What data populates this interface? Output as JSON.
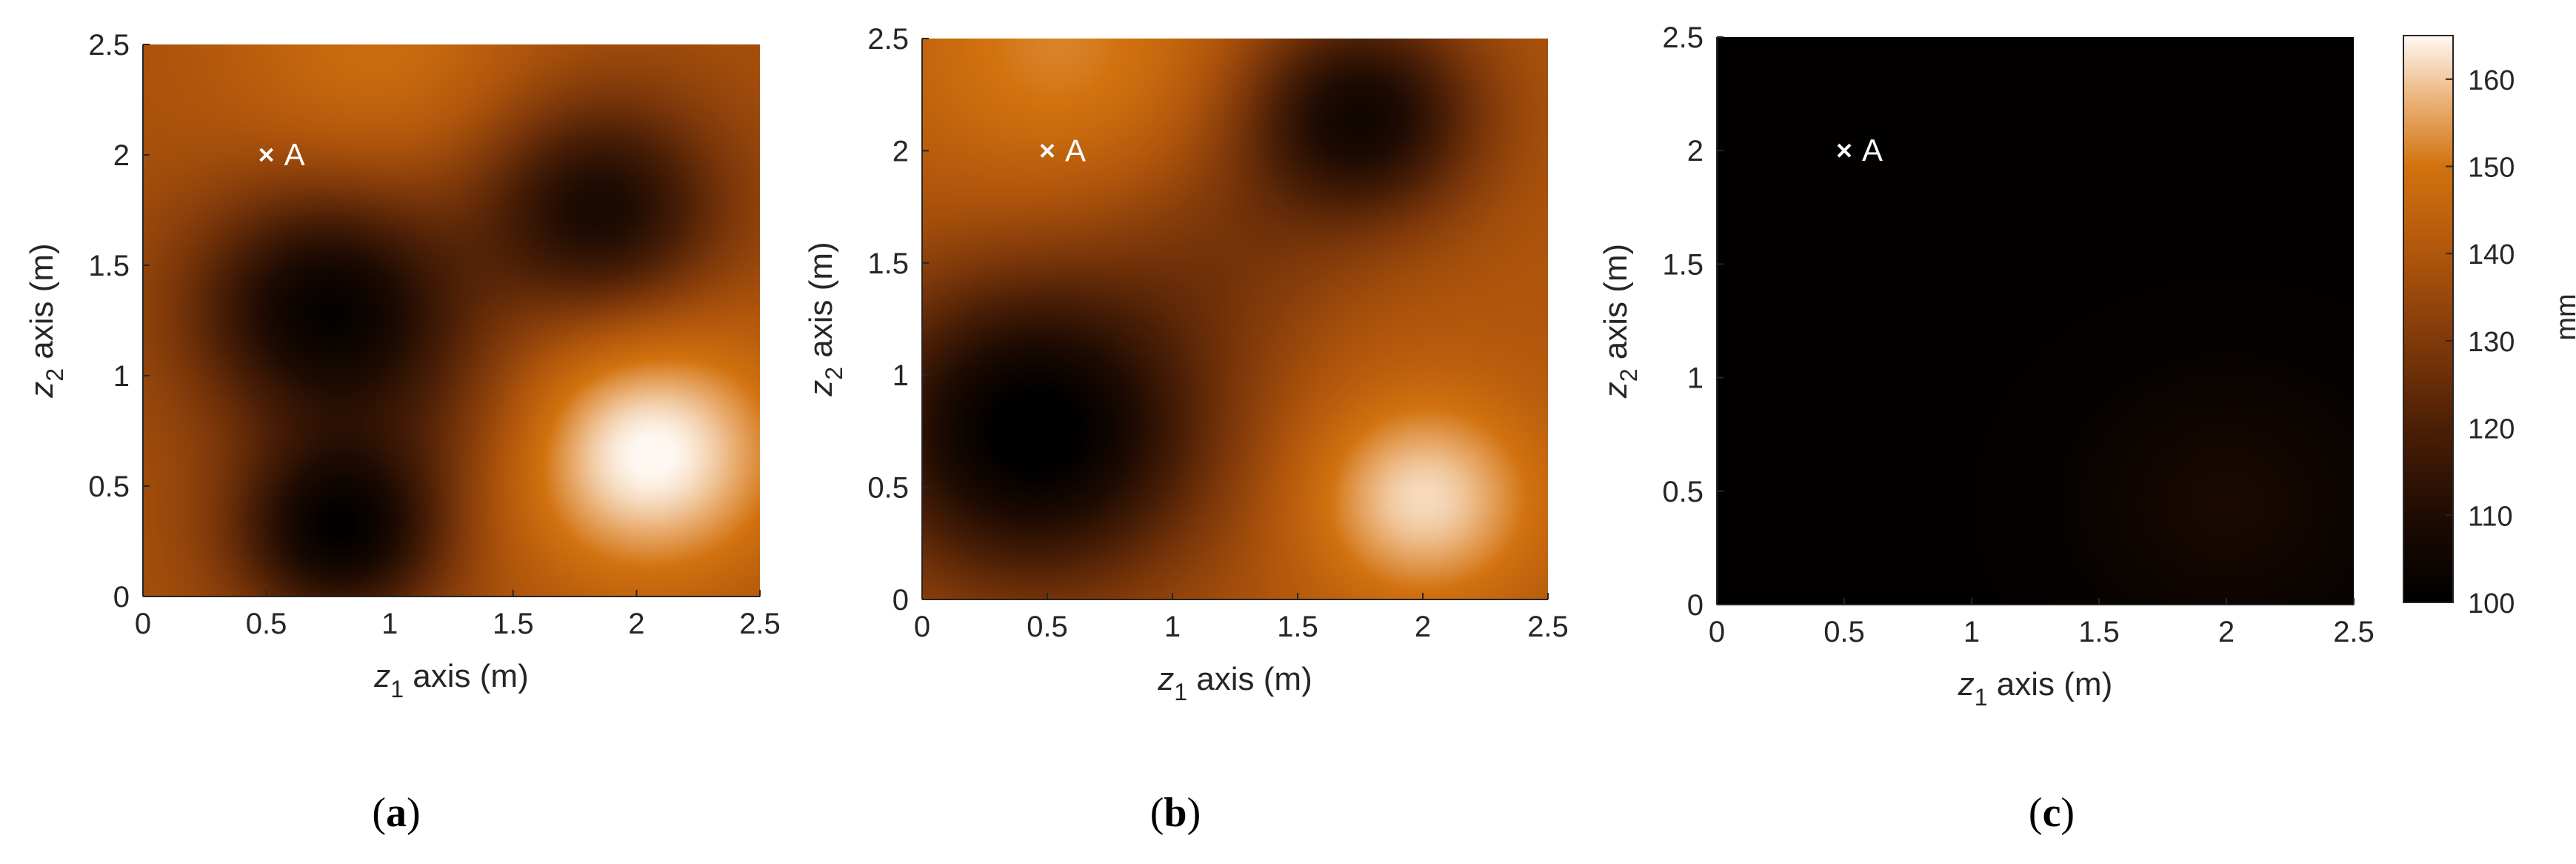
{
  "chart_data": [
    {
      "type": "heatmap",
      "caption": "a",
      "xlabel_main": "z",
      "xlabel_sub": "1",
      "xlabel_rest": " axis (m)",
      "ylabel_main": "z",
      "ylabel_sub": "2",
      "ylabel_rest": " axis (m)",
      "xlim": [
        0,
        2.5
      ],
      "ylim": [
        0,
        2.5
      ],
      "xticks": [
        "0",
        "0.5",
        "1",
        "1.5",
        "2",
        "2.5"
      ],
      "yticks": [
        "0",
        "0.5",
        "1",
        "1.5",
        "2",
        "2.5"
      ],
      "base_value": 138,
      "features": [
        {
          "z1": 0.75,
          "z2": 1.3,
          "value": -36,
          "sigma": 0.38
        },
        {
          "z1": 0.8,
          "z2": 0.3,
          "value": -36,
          "sigma": 0.3
        },
        {
          "z1": 1.85,
          "z2": 1.75,
          "value": -30,
          "sigma": 0.35
        },
        {
          "z1": 2.05,
          "z2": 0.65,
          "value": 28,
          "sigma": 0.4
        },
        {
          "z1": 0.95,
          "z2": 2.45,
          "value": 10,
          "sigma": 0.45
        },
        {
          "z1": 1.3,
          "z2": 0.8,
          "value": -6,
          "sigma": 0.3
        }
      ],
      "markers": [
        {
          "label": "A",
          "z1": 0.5,
          "z2": 2.0
        }
      ]
    },
    {
      "type": "heatmap",
      "caption": "b",
      "xlabel_main": "z",
      "xlabel_sub": "1",
      "xlabel_rest": " axis (m)",
      "ylabel_main": "z",
      "ylabel_sub": "2",
      "ylabel_rest": " axis (m)",
      "xlim": [
        0,
        2.5
      ],
      "ylim": [
        0,
        2.5
      ],
      "xticks": [
        "0",
        "0.5",
        "1",
        "1.5",
        "2",
        "2.5"
      ],
      "yticks": [
        "0",
        "0.5",
        "1",
        "1.5",
        "2",
        "2.5"
      ],
      "base_value": 140,
      "features": [
        {
          "z1": 0.45,
          "z2": 0.75,
          "value": -42,
          "sigma": 0.48
        },
        {
          "z1": 1.75,
          "z2": 2.15,
          "value": -34,
          "sigma": 0.33
        },
        {
          "z1": 2.0,
          "z2": 0.45,
          "value": 22,
          "sigma": 0.33
        },
        {
          "z1": 0.55,
          "z2": 2.45,
          "value": 12,
          "sigma": 0.45
        },
        {
          "z1": 1.2,
          "z2": 1.55,
          "value": -8,
          "sigma": 0.35
        }
      ],
      "markers": [
        {
          "label": "A",
          "z1": 0.5,
          "z2": 2.0
        }
      ]
    },
    {
      "type": "heatmap",
      "caption": "c",
      "xlabel_main": "z",
      "xlabel_sub": "1",
      "xlabel_rest": " axis (m)",
      "ylabel_main": "z",
      "ylabel_sub": "2",
      "ylabel_rest": " axis (m)",
      "xlim": [
        0,
        2.5
      ],
      "ylim": [
        0,
        2.5
      ],
      "xticks": [
        "0",
        "0.5",
        "1",
        "1.5",
        "2",
        "2.5"
      ],
      "yticks": [
        "0",
        "0.5",
        "1",
        "1.5",
        "2",
        "2.5"
      ],
      "base_value": 101,
      "features": [
        {
          "z1": 2.0,
          "z2": 0.45,
          "value": 7,
          "sigma": 0.35
        }
      ],
      "markers": [
        {
          "label": "A",
          "z1": 0.5,
          "z2": 2.0
        }
      ],
      "colorbar": {
        "label": "mm",
        "range": [
          100,
          165
        ],
        "ticks": [
          "100",
          "110",
          "120",
          "130",
          "140",
          "150",
          "160"
        ],
        "colormap": [
          {
            "value": 100,
            "color": "#000000"
          },
          {
            "value": 110,
            "color": "#1f0b02"
          },
          {
            "value": 120,
            "color": "#4b1f06"
          },
          {
            "value": 130,
            "color": "#80390a"
          },
          {
            "value": 140,
            "color": "#b0560c"
          },
          {
            "value": 150,
            "color": "#d2720f"
          },
          {
            "value": 157,
            "color": "#e9ad70"
          },
          {
            "value": 165,
            "color": "#fff8f2"
          }
        ]
      }
    }
  ]
}
